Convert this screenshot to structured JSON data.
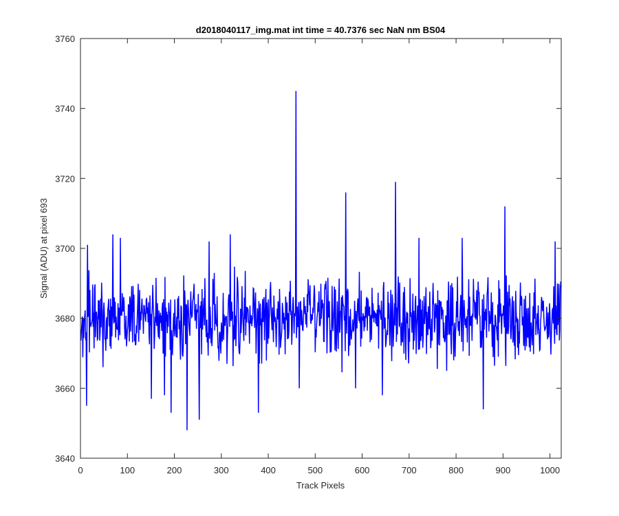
{
  "chart_data": {
    "type": "line",
    "title": "d2018040117_img.mat int time = 40.7376 sec  NaN nm BS04",
    "xlabel": "Track Pixels",
    "ylabel": "Signal (ADU) at pixel 693",
    "xlim": [
      0,
      1024
    ],
    "ylim": [
      3640,
      3760
    ],
    "xticks": [
      0,
      100,
      200,
      300,
      400,
      500,
      600,
      700,
      800,
      900,
      1000
    ],
    "yticks": [
      3640,
      3660,
      3680,
      3700,
      3720,
      3740,
      3760
    ],
    "grid": false,
    "legend": "none",
    "series_color": "#0000ff",
    "n_points": 1024,
    "baseline_mean": 3680,
    "noise_amplitude": 9,
    "spikes": [
      {
        "x": 12,
        "y": 3655
      },
      {
        "x": 14,
        "y": 3701
      },
      {
        "x": 68,
        "y": 3704
      },
      {
        "x": 84,
        "y": 3703
      },
      {
        "x": 150,
        "y": 3657
      },
      {
        "x": 178,
        "y": 3658
      },
      {
        "x": 192,
        "y": 3653
      },
      {
        "x": 226,
        "y": 3648
      },
      {
        "x": 252,
        "y": 3651
      },
      {
        "x": 273,
        "y": 3702
      },
      {
        "x": 318,
        "y": 3704
      },
      {
        "x": 378,
        "y": 3653
      },
      {
        "x": 458,
        "y": 3745
      },
      {
        "x": 465,
        "y": 3660
      },
      {
        "x": 564,
        "y": 3716
      },
      {
        "x": 585,
        "y": 3660
      },
      {
        "x": 670,
        "y": 3719
      },
      {
        "x": 642,
        "y": 3658
      },
      {
        "x": 720,
        "y": 3703
      },
      {
        "x": 812,
        "y": 3703
      },
      {
        "x": 857,
        "y": 3654
      },
      {
        "x": 903,
        "y": 3712
      },
      {
        "x": 1010,
        "y": 3702
      }
    ]
  }
}
